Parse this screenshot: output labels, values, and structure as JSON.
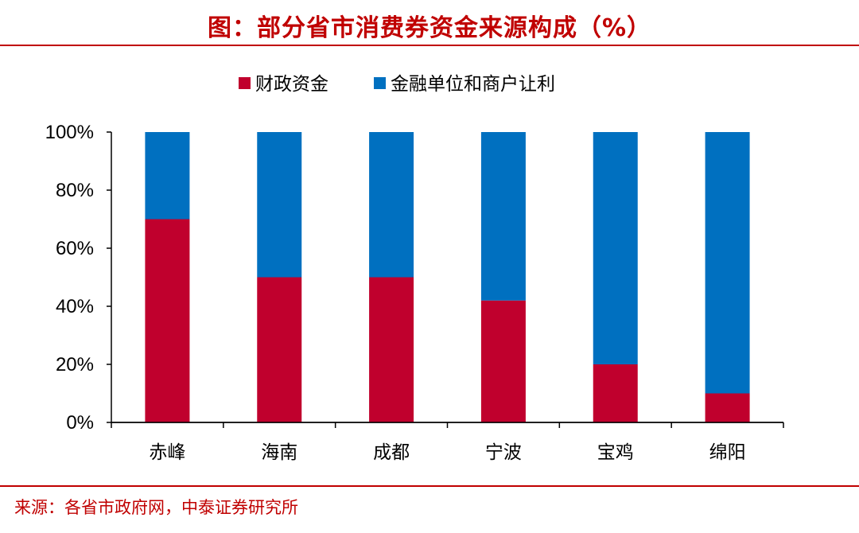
{
  "title": "图：部分省市消费券资金来源构成（%）",
  "source": "来源：各省市政府网，中泰证券研究所",
  "colors": {
    "title": "#C00000",
    "fiscal": "#C0002D",
    "merchant": "#0070C0"
  },
  "chart_data": {
    "type": "bar",
    "stacked": true,
    "categories": [
      "赤峰",
      "海南",
      "成都",
      "宁波",
      "宝鸡",
      "绵阳"
    ],
    "series": [
      {
        "name": "财政资金",
        "values": [
          70,
          50,
          50,
          42,
          20,
          10
        ]
      },
      {
        "name": "金融单位和商户让利",
        "values": [
          30,
          50,
          50,
          58,
          80,
          90
        ]
      }
    ],
    "ylim": [
      0,
      100
    ],
    "yticks": [
      "0%",
      "20%",
      "40%",
      "60%",
      "80%",
      "100%"
    ],
    "ytick_values": [
      0,
      20,
      40,
      60,
      80,
      100
    ],
    "legend": "top-center",
    "grid": false
  }
}
